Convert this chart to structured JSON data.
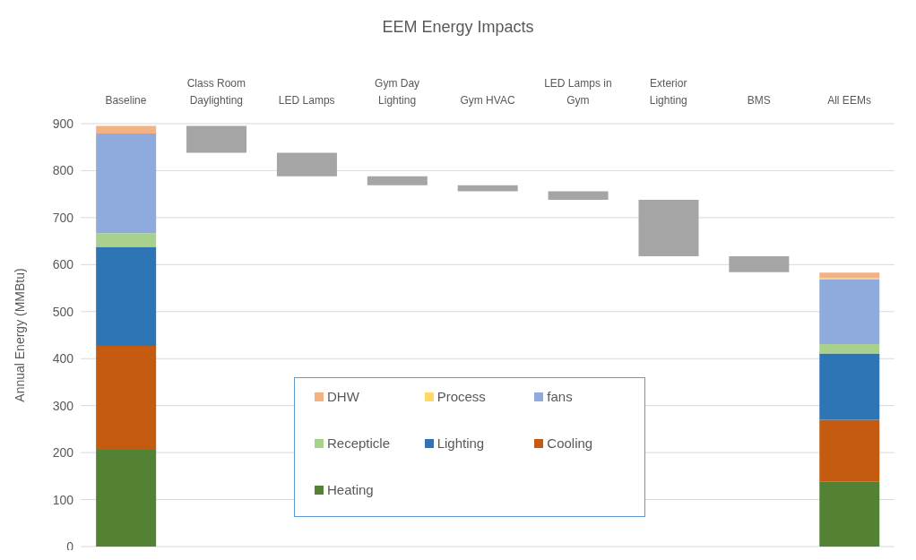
{
  "chart_data": {
    "type": "bar",
    "title": "EEM Energy Impacts",
    "ylabel": "Annual Energy (MMBtu)",
    "categories": [
      "Baseline",
      "Class Room Daylighting",
      "LED Lamps",
      "Gym Day Lighting",
      "Gym HVAC",
      "LED Lamps in Gym",
      "Exterior Lighting",
      "BMS",
      "All EEMs"
    ],
    "stacked": true,
    "ylim": [
      0,
      900
    ],
    "yticks": [
      0,
      100,
      200,
      300,
      400,
      500,
      600,
      700,
      800,
      900
    ],
    "grid": "y",
    "legend": "bottom",
    "series": [
      {
        "name": "Heating",
        "color": "#548235",
        "values": [
          206,
          null,
          null,
          null,
          null,
          null,
          null,
          null,
          138
        ]
      },
      {
        "name": "Cooling",
        "color": "#c55a11",
        "values": [
          221,
          null,
          null,
          null,
          null,
          null,
          null,
          null,
          132
        ]
      },
      {
        "name": "Lighting",
        "color": "#2e75b6",
        "values": [
          211,
          null,
          null,
          null,
          null,
          null,
          null,
          null,
          141
        ]
      },
      {
        "name": "Recepticle",
        "color": "#a9d18e",
        "values": [
          29,
          null,
          null,
          null,
          null,
          null,
          null,
          null,
          20
        ]
      },
      {
        "name": "fans",
        "color": "#8faadc",
        "values": [
          212,
          null,
          null,
          null,
          null,
          null,
          null,
          null,
          138
        ]
      },
      {
        "name": "Process",
        "color": "#ffd966",
        "values": [
          0,
          null,
          null,
          null,
          null,
          null,
          null,
          null,
          2
        ]
      },
      {
        "name": "DHW",
        "color": "#f4b183",
        "values": [
          16,
          null,
          null,
          null,
          null,
          null,
          null,
          null,
          12
        ]
      },
      {
        "color": "#a5a5a5",
        "values": [
          null,
          57,
          50,
          19,
          13,
          18,
          120,
          34,
          null
        ],
        "base": [
          null,
          838,
          788,
          769,
          756,
          738,
          618,
          584,
          null
        ]
      }
    ]
  }
}
